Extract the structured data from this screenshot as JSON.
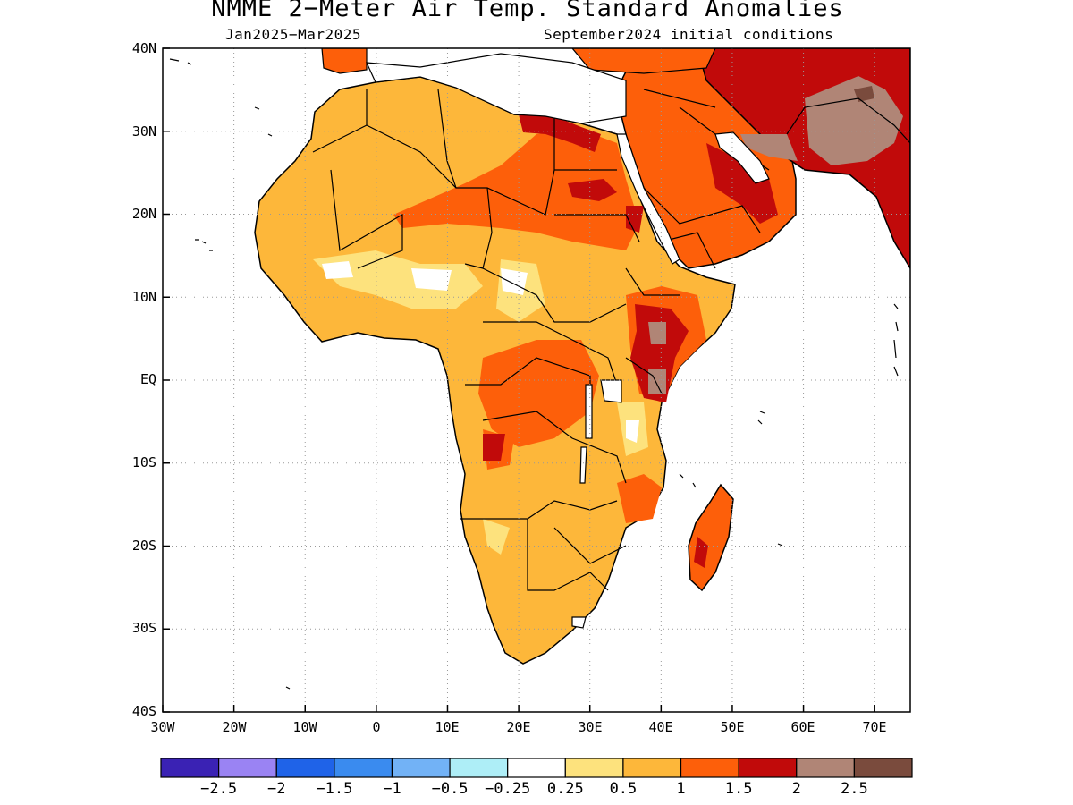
{
  "title": "NMME 2−Meter Air Temp. Standard Anomalies",
  "subtitle_left": "Jan2025−Mar2025",
  "subtitle_right": "September2024 initial conditions",
  "axes": {
    "y_ticks": [
      "40N",
      "30N",
      "20N",
      "10N",
      "EQ",
      "10S",
      "20S",
      "30S",
      "40S"
    ],
    "x_ticks": [
      "30W",
      "20W",
      "10W",
      "0",
      "10E",
      "20E",
      "30E",
      "40E",
      "50E",
      "60E",
      "70E"
    ],
    "lat_range": [
      -40,
      40
    ],
    "lon_range": [
      -30,
      75
    ],
    "grid": "dotted"
  },
  "colorbar": {
    "colors": [
      "#3a22b4",
      "#9a83f3",
      "#1f63e8",
      "#3a8bef",
      "#72b2f6",
      "#aeeef7",
      "#ffffff",
      "#fde27d",
      "#fdb73a",
      "#fd5f0a",
      "#c10a0a",
      "#b08576",
      "#7a4b3d"
    ],
    "labels": [
      "−2.5",
      "−2",
      "−1.5",
      "−1",
      "−0.5",
      "−0.25",
      "0.25",
      "0.5",
      "1",
      "1.5",
      "2",
      "2.5"
    ]
  }
}
